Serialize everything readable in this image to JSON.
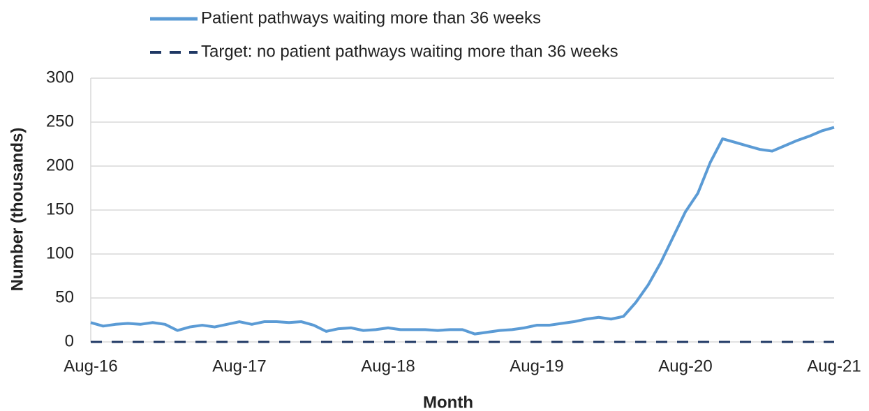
{
  "chart_data": {
    "type": "line",
    "x_label": "Month",
    "y_label": "Number (thousands)",
    "categories": [
      "Aug-16",
      null,
      null,
      null,
      null,
      null,
      null,
      null,
      null,
      null,
      null,
      null,
      "Aug-17",
      null,
      null,
      null,
      null,
      null,
      null,
      null,
      null,
      null,
      null,
      null,
      "Aug-18",
      null,
      null,
      null,
      null,
      null,
      null,
      null,
      null,
      null,
      null,
      null,
      "Aug-19",
      null,
      null,
      null,
      null,
      null,
      null,
      null,
      null,
      null,
      null,
      null,
      "Aug-20",
      null,
      null,
      null,
      null,
      null,
      null,
      null,
      null,
      null,
      null,
      null,
      "Aug-21"
    ],
    "series": [
      {
        "name": "Patient pathways waiting more than 36 weeks",
        "color": "#5b9bd5",
        "dashed": false,
        "values": [
          22,
          18,
          20,
          21,
          20,
          22,
          20,
          13,
          17,
          19,
          17,
          20,
          23,
          20,
          23,
          23,
          22,
          23,
          19,
          12,
          15,
          16,
          13,
          14,
          16,
          14,
          14,
          14,
          13,
          14,
          14,
          9,
          11,
          13,
          14,
          16,
          19,
          19,
          21,
          23,
          26,
          28,
          26,
          29,
          45,
          65,
          90,
          119,
          148,
          169,
          204,
          231,
          227,
          223,
          219,
          217,
          223,
          229,
          234,
          240,
          244
        ]
      },
      {
        "name": "Target: no patient pathways waiting more than 36 weeks",
        "color": "#1f3864",
        "dashed": true,
        "values": [
          0,
          0,
          0,
          0,
          0,
          0,
          0,
          0,
          0,
          0,
          0,
          0,
          0,
          0,
          0,
          0,
          0,
          0,
          0,
          0,
          0,
          0,
          0,
          0,
          0,
          0,
          0,
          0,
          0,
          0,
          0,
          0,
          0,
          0,
          0,
          0,
          0,
          0,
          0,
          0,
          0,
          0,
          0,
          0,
          0,
          0,
          0,
          0,
          0,
          0,
          0,
          0,
          0,
          0,
          0,
          0,
          0,
          0,
          0,
          0,
          0
        ]
      }
    ],
    "ylim": [
      0,
      300
    ],
    "yticks": [
      0,
      50,
      100,
      150,
      200,
      250,
      300
    ],
    "grid": true,
    "legend": "top"
  }
}
